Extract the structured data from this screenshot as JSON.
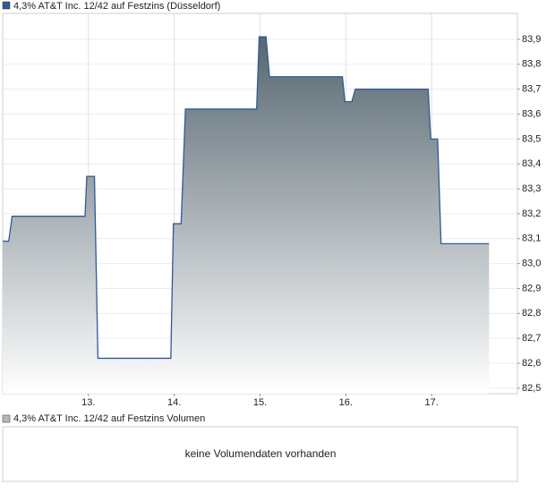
{
  "chart_data": [
    {
      "type": "area",
      "x": [
        12.0,
        12.07,
        12.11,
        12.96,
        12.98,
        13.07,
        13.11,
        13.96,
        13.99,
        14.08,
        14.13,
        14.96,
        14.99,
        15.07,
        15.11,
        15.96,
        15.99,
        16.07,
        16.11,
        16.96,
        16.99,
        17.07,
        17.11,
        17.67
      ],
      "series": [
        {
          "name": "4,3% AT&T Inc. 12/42 auf Festzins (Düsseldorf)",
          "color": "#2f5a9a",
          "values": [
            83.09,
            83.09,
            83.19,
            83.19,
            83.35,
            83.35,
            82.62,
            82.62,
            83.16,
            83.16,
            83.62,
            83.62,
            83.91,
            83.91,
            83.75,
            83.75,
            83.65,
            83.65,
            83.7,
            83.7,
            83.5,
            83.5,
            83.08,
            83.08
          ]
        }
      ],
      "xlim": [
        12,
        18
      ],
      "xticks": [
        {
          "value": 13,
          "label": "13."
        },
        {
          "value": 14,
          "label": "14."
        },
        {
          "value": 15,
          "label": "15."
        },
        {
          "value": 16,
          "label": "16."
        },
        {
          "value": 17,
          "label": "17."
        }
      ],
      "ylim": [
        82.478,
        84.004
      ],
      "yticks": [
        {
          "value": 82.5,
          "label": "82,5"
        },
        {
          "value": 82.6,
          "label": "82,6"
        },
        {
          "value": 82.7,
          "label": "82,7"
        },
        {
          "value": 82.8,
          "label": "82,8"
        },
        {
          "value": 82.9,
          "label": "82,9"
        },
        {
          "value": 83.0,
          "label": "83,0"
        },
        {
          "value": 83.1,
          "label": "83,1"
        },
        {
          "value": 83.2,
          "label": "83,2"
        },
        {
          "value": 83.3,
          "label": "83,3"
        },
        {
          "value": 83.4,
          "label": "83,4"
        },
        {
          "value": 83.5,
          "label": "83,5"
        },
        {
          "value": 83.6,
          "label": "83,6"
        },
        {
          "value": 83.7,
          "label": "83,7"
        },
        {
          "value": 83.8,
          "label": "83,8"
        },
        {
          "value": 83.9,
          "label": "83,9"
        }
      ],
      "grid": true
    },
    {
      "type": "bar",
      "series": [
        {
          "name": "4,3% AT&T Inc. 12/42 auf Festzins Volumen",
          "color": "#b8b8b8",
          "values": []
        }
      ],
      "message": "keine Volumendaten vorhanden"
    }
  ]
}
